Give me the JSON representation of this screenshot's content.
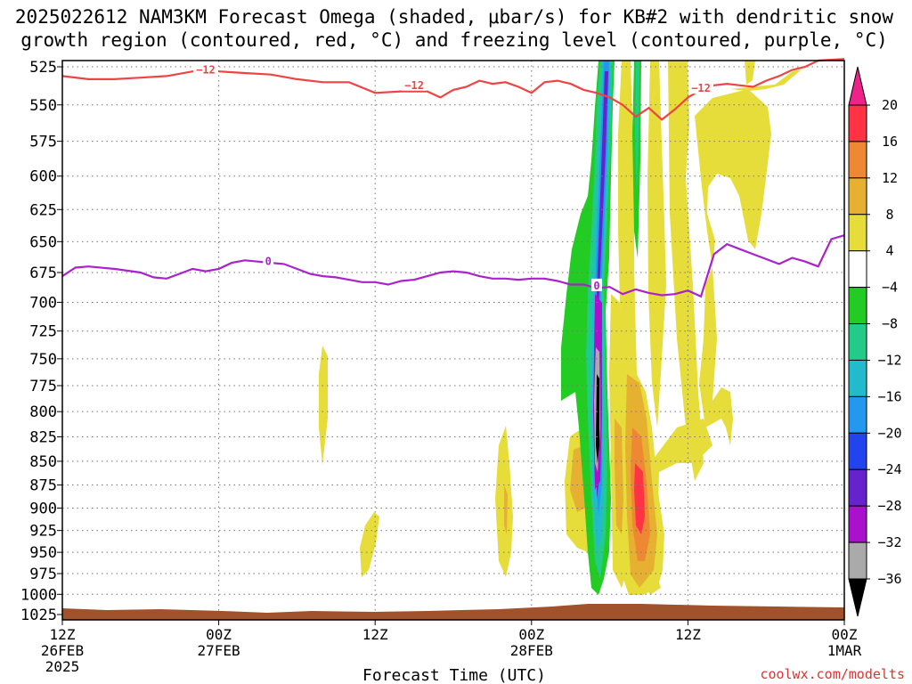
{
  "title_lines": [
    "2025022612 NAM3KM Forecast Omega (shaded, μbar/s) for KB#2 with dendritic snow",
    "growth region (contoured, red, °C) and freezing level (contoured, purple, °C)"
  ],
  "credit": "coolwx.com/modelts",
  "colors": {
    "snow_growth": "#ee4444",
    "freezing": "#aa22cc",
    "ground": "#a0522d",
    "grid": "#777777"
  },
  "chart_data": {
    "type": "heatmap",
    "xlabel": "Forecast Time (UTC)",
    "ylabel": "",
    "x_unit": "hours from 2025-02-26 12Z",
    "xlim": [
      0,
      60
    ],
    "ylim": [
      525,
      1025
    ],
    "y_scale": "log-pressure",
    "grid": true,
    "y_ticks": [
      525,
      550,
      575,
      600,
      625,
      650,
      675,
      700,
      725,
      750,
      775,
      800,
      825,
      850,
      875,
      900,
      925,
      950,
      975,
      1000,
      1025
    ],
    "x_ticks": [
      {
        "x": 0,
        "lines": [
          "12Z",
          "26FEB",
          "2025"
        ]
      },
      {
        "x": 12,
        "lines": [
          "00Z",
          "27FEB"
        ]
      },
      {
        "x": 24,
        "lines": [
          "12Z"
        ]
      },
      {
        "x": 36,
        "lines": [
          "00Z",
          "28FEB"
        ]
      },
      {
        "x": 48,
        "lines": [
          "12Z"
        ]
      },
      {
        "x": 60,
        "lines": [
          "00Z",
          "1MAR"
        ]
      }
    ],
    "colorbar": {
      "labels": [
        "20",
        "16",
        "12",
        "8",
        "4",
        "−4",
        "−8",
        "−12",
        "−16",
        "−20",
        "−24",
        "−28",
        "−32",
        "−36"
      ],
      "bands": [
        {
          "range": [
            16,
            20
          ],
          "color": "#ff3344"
        },
        {
          "range": [
            12,
            16
          ],
          "color": "#ee8833"
        },
        {
          "range": [
            8,
            12
          ],
          "color": "#e6b030"
        },
        {
          "range": [
            4,
            8
          ],
          "color": "#e6dc3a"
        },
        {
          "range": [
            -4,
            4
          ],
          "color": "#ffffff"
        },
        {
          "range": [
            -8,
            -4
          ],
          "color": "#22cc22"
        },
        {
          "range": [
            -12,
            -8
          ],
          "color": "#22cc88"
        },
        {
          "range": [
            -16,
            -12
          ],
          "color": "#22bbcc"
        },
        {
          "range": [
            -20,
            -16
          ],
          "color": "#2299ee"
        },
        {
          "range": [
            -24,
            -20
          ],
          "color": "#2244ee"
        },
        {
          "range": [
            -28,
            -24
          ],
          "color": "#6622cc"
        },
        {
          "range": [
            -32,
            -28
          ],
          "color": "#aa11cc"
        },
        {
          "range": [
            -36,
            -32
          ],
          "color": "#aaaaaa"
        }
      ],
      "top_arrow": "#ee2288",
      "bottom_arrow": "#000000"
    },
    "series": [
      {
        "level": -12,
        "points": [
          [
            0,
            531
          ],
          [
            2,
            533
          ],
          [
            4,
            533
          ],
          [
            6,
            532
          ],
          [
            8,
            531
          ],
          [
            10,
            528
          ],
          [
            12,
            528
          ],
          [
            14,
            529
          ],
          [
            16,
            530
          ],
          [
            18,
            533
          ],
          [
            20,
            535
          ],
          [
            22,
            535
          ],
          [
            24,
            542
          ],
          [
            26,
            541
          ],
          [
            28,
            541
          ],
          [
            29,
            545
          ],
          [
            30,
            540
          ],
          [
            31,
            538
          ],
          [
            32,
            534
          ],
          [
            33,
            536
          ],
          [
            34,
            535
          ],
          [
            35,
            538
          ],
          [
            36,
            542
          ],
          [
            37,
            535
          ],
          [
            38,
            534
          ],
          [
            39,
            536
          ],
          [
            40,
            540
          ],
          [
            41,
            542
          ],
          [
            42,
            545
          ],
          [
            43,
            550
          ],
          [
            44,
            558
          ],
          [
            45,
            552
          ],
          [
            46,
            560
          ],
          [
            47,
            553
          ],
          [
            48,
            545
          ],
          [
            49,
            540
          ],
          [
            50,
            537
          ],
          [
            51,
            536
          ],
          [
            52,
            537
          ],
          [
            53,
            538
          ],
          [
            54,
            534
          ],
          [
            55,
            531
          ],
          [
            56,
            527
          ],
          [
            57,
            525
          ],
          [
            58,
            521
          ],
          [
            60,
            520
          ]
        ],
        "labels_at": [
          [
            11,
            527
          ],
          [
            27,
            537
          ],
          [
            49,
            539
          ]
        ]
      },
      {
        "level": 0,
        "points": [
          [
            0,
            678
          ],
          [
            1,
            671
          ],
          [
            2,
            670
          ],
          [
            4,
            672
          ],
          [
            6,
            675
          ],
          [
            7,
            679
          ],
          [
            8,
            680
          ],
          [
            9,
            676
          ],
          [
            10,
            672
          ],
          [
            11,
            674
          ],
          [
            12,
            672
          ],
          [
            13,
            667
          ],
          [
            14,
            665
          ],
          [
            15,
            666
          ],
          [
            16,
            667
          ],
          [
            17,
            668
          ],
          [
            18,
            672
          ],
          [
            19,
            676
          ],
          [
            20,
            678
          ],
          [
            21,
            679
          ],
          [
            22,
            681
          ],
          [
            23,
            683
          ],
          [
            24,
            683
          ],
          [
            25,
            685
          ],
          [
            26,
            682
          ],
          [
            27,
            681
          ],
          [
            28,
            678
          ],
          [
            29,
            675
          ],
          [
            30,
            674
          ],
          [
            31,
            675
          ],
          [
            32,
            678
          ],
          [
            33,
            680
          ],
          [
            34,
            680
          ],
          [
            35,
            681
          ],
          [
            36,
            680
          ],
          [
            37,
            680
          ],
          [
            38,
            682
          ],
          [
            39,
            685
          ],
          [
            40,
            685
          ],
          [
            41,
            688
          ],
          [
            42,
            687
          ],
          [
            43,
            693
          ],
          [
            44,
            689
          ],
          [
            45,
            692
          ],
          [
            46,
            694
          ],
          [
            47,
            693
          ],
          [
            48,
            690
          ],
          [
            49,
            695
          ],
          [
            50,
            660
          ],
          [
            51,
            652
          ],
          [
            52,
            656
          ],
          [
            53,
            660
          ],
          [
            54,
            664
          ],
          [
            55,
            668
          ],
          [
            56,
            663
          ],
          [
            57,
            666
          ],
          [
            58,
            670
          ],
          [
            59,
            648
          ],
          [
            60,
            645
          ]
        ],
        "labels_at": [
          [
            15.8,
            666
          ],
          [
            41,
            686
          ]
        ]
      }
    ]
  }
}
